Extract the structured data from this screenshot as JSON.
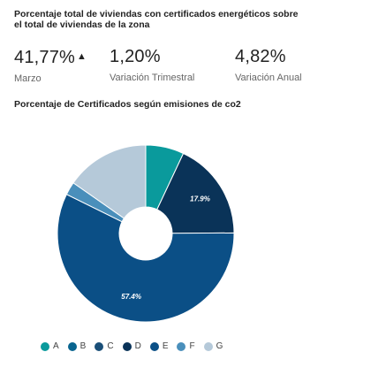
{
  "header": {
    "title": "Porcentaje total de viviendas con certificados energéticos sobre el total de viviendas de la zona"
  },
  "kpis": [
    {
      "value": "41,77%",
      "trend": "up",
      "label": "Marzo"
    },
    {
      "value": "1,20%",
      "label": "Variación Trimestral"
    },
    {
      "value": "4,82%",
      "label": "Variación Anual"
    }
  ],
  "chart_data": {
    "type": "pie",
    "title": "Porcentaje de Certificados según emisiones de co2",
    "legend_position": "bottom",
    "donut": true,
    "categories": [
      "A",
      "B",
      "C",
      "D",
      "E",
      "F",
      "G"
    ],
    "values": [
      7.0,
      0.0,
      0.0,
      17.9,
      57.4,
      2.4,
      15.3
    ],
    "data_labels": [
      "",
      "",
      "",
      "17.9%",
      "57.4%",
      "",
      ""
    ],
    "colors": [
      "#0a9a9c",
      "#08648f",
      "#1a4f78",
      "#0a3358",
      "#0b4f86",
      "#4a8fbb",
      "#b5c9d9"
    ]
  }
}
